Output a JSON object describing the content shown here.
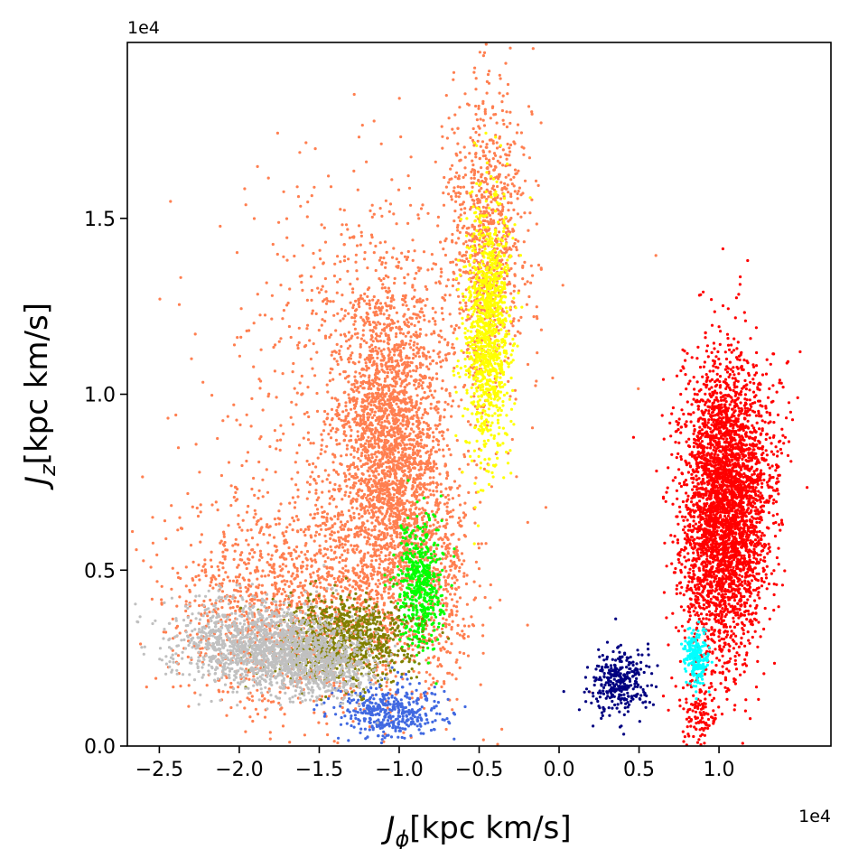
{
  "chart_data": {
    "type": "scatter",
    "title": "",
    "xlabel_main": "J",
    "xlabel_sub": "ϕ",
    "xlabel_units": "[kpc km/s]",
    "ylabel_main": "J",
    "ylabel_sub": "z",
    "ylabel_units": "[kpc km/s]",
    "x_offset_text": "1e4",
    "y_offset_text": "1e4",
    "xlim": [
      -2.7,
      1.7
    ],
    "ylim": [
      0.0,
      2.0
    ],
    "xticks": [
      -2.5,
      -2.0,
      -1.5,
      -1.0,
      -0.5,
      0.0,
      0.5,
      1.0
    ],
    "xtick_labels": [
      "−2.5",
      "−2.0",
      "−1.5",
      "−1.0",
      "−0.5",
      "0.0",
      "0.5",
      "1.0"
    ],
    "yticks": [
      0.0,
      0.5,
      1.0,
      1.5
    ],
    "ytick_labels": [
      "0.0",
      "0.5",
      "1.0",
      "1.5"
    ],
    "grid": false,
    "legend": false,
    "series": [
      {
        "color": "#ff7f50",
        "clusters": [
          {
            "cx": -1.05,
            "cy": 0.82,
            "sx": 0.17,
            "sy": 0.27,
            "n": 2800
          },
          {
            "cx": -0.45,
            "cy": 1.45,
            "sx": 0.12,
            "sy": 0.22,
            "n": 900
          },
          {
            "cx": -1.7,
            "cy": 0.4,
            "sx": 0.38,
            "sy": 0.15,
            "n": 1300
          },
          {
            "cx": -1.35,
            "cy": 1.05,
            "sx": 0.4,
            "sy": 0.35,
            "n": 450
          },
          {
            "cx": -0.7,
            "cy": 0.48,
            "sx": 0.1,
            "sy": 0.14,
            "n": 250
          },
          {
            "cx": -1.2,
            "cy": 0.7,
            "sx": 0.55,
            "sy": 0.4,
            "n": 300
          }
        ]
      },
      {
        "color": "#ffff00",
        "clusters": [
          {
            "cx": -0.45,
            "cy": 1.18,
            "sx": 0.07,
            "sy": 0.18,
            "n": 1100
          }
        ]
      },
      {
        "color": "#ff0000",
        "clusters": [
          {
            "cx": 1.02,
            "cy": 0.65,
            "sx": 0.13,
            "sy": 0.2,
            "n": 3000
          },
          {
            "cx": 1.12,
            "cy": 0.82,
            "sx": 0.14,
            "sy": 0.15,
            "n": 700
          },
          {
            "cx": 0.88,
            "cy": 0.1,
            "sx": 0.07,
            "sy": 0.06,
            "n": 130
          }
        ]
      },
      {
        "color": "#00ffff",
        "clusters": [
          {
            "cx": 0.86,
            "cy": 0.25,
            "sx": 0.035,
            "sy": 0.04,
            "n": 220
          }
        ]
      },
      {
        "color": "#000080",
        "clusters": [
          {
            "cx": 0.38,
            "cy": 0.18,
            "sx": 0.09,
            "sy": 0.045,
            "n": 320
          }
        ]
      },
      {
        "color": "#00ff00",
        "clusters": [
          {
            "cx": -0.87,
            "cy": 0.46,
            "sx": 0.07,
            "sy": 0.09,
            "n": 500
          }
        ]
      },
      {
        "color": "#4169e1",
        "clusters": [
          {
            "cx": -1.05,
            "cy": 0.1,
            "sx": 0.16,
            "sy": 0.04,
            "n": 420
          }
        ]
      },
      {
        "color": "#808000",
        "clusters": [
          {
            "cx": -1.35,
            "cy": 0.3,
            "sx": 0.22,
            "sy": 0.06,
            "n": 900
          }
        ]
      },
      {
        "color": "#c0c0c0",
        "clusters": [
          {
            "cx": -1.9,
            "cy": 0.29,
            "sx": 0.25,
            "sy": 0.06,
            "n": 1200
          },
          {
            "cx": -1.5,
            "cy": 0.23,
            "sx": 0.18,
            "sy": 0.05,
            "n": 700
          }
        ]
      }
    ]
  }
}
